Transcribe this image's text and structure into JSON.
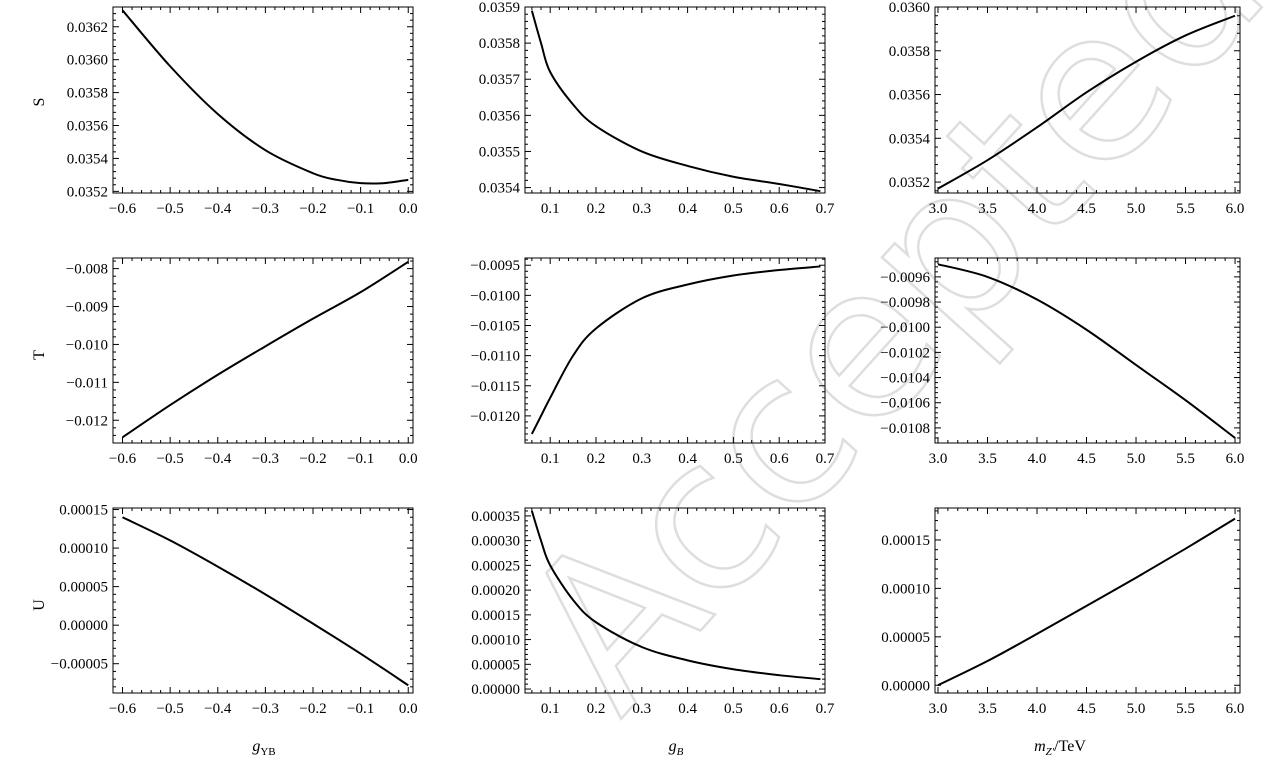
{
  "watermark": "Accepted",
  "row_labels": [
    "S",
    "T",
    "U"
  ],
  "column_labels": [
    {
      "main": "g",
      "sub": "YB"
    },
    {
      "main": "g",
      "sub": "B"
    },
    {
      "main": "m",
      "sub": "Z′",
      "suffix": "/TeV"
    }
  ],
  "chart_data": [
    {
      "type": "line",
      "panel": "S vs gYB",
      "ylabel": "S",
      "xlabel": "gYB",
      "xlim": [
        -0.62,
        0.01
      ],
      "ylim": [
        0.03519,
        0.03632
      ],
      "xticks": [
        -0.6,
        -0.5,
        -0.4,
        -0.3,
        -0.2,
        -0.1,
        0.0
      ],
      "xtick_labels": [
        "−0.6",
        "−0.5",
        "−0.4",
        "−0.3",
        "−0.2",
        "−0.1",
        "0.0"
      ],
      "yticks": [
        0.0352,
        0.0354,
        0.0356,
        0.0358,
        0.036,
        0.0362
      ],
      "ytick_labels": [
        "0.0352",
        "0.0354",
        "0.0356",
        "0.0358",
        "0.0360",
        "0.0362"
      ],
      "x": [
        -0.6,
        -0.5,
        -0.4,
        -0.3,
        -0.2,
        -0.15,
        -0.1,
        -0.05,
        0.0
      ],
      "y": [
        0.0363,
        0.03596,
        0.03567,
        0.03545,
        0.03531,
        0.03527,
        0.03525,
        0.03525,
        0.03527
      ]
    },
    {
      "type": "line",
      "panel": "S vs gB",
      "ylabel": "",
      "xlabel": "gB",
      "xlim": [
        0.045,
        0.7
      ],
      "ylim": [
        0.035385,
        0.0359
      ],
      "xticks": [
        0.1,
        0.2,
        0.3,
        0.4,
        0.5,
        0.6,
        0.7
      ],
      "xtick_labels": [
        "0.1",
        "0.2",
        "0.3",
        "0.4",
        "0.5",
        "0.6",
        "0.7"
      ],
      "yticks": [
        0.0354,
        0.0355,
        0.0356,
        0.0357,
        0.0358,
        0.0359
      ],
      "ytick_labels": [
        "0.0354",
        "0.0355",
        "0.0356",
        "0.0357",
        "0.0358",
        "0.0359"
      ],
      "x": [
        0.06,
        0.08,
        0.1,
        0.15,
        0.2,
        0.3,
        0.4,
        0.5,
        0.6,
        0.69
      ],
      "y": [
        0.03589,
        0.0358,
        0.03572,
        0.03563,
        0.03557,
        0.0355,
        0.03546,
        0.03543,
        0.03541,
        0.03539
      ]
    },
    {
      "type": "line",
      "panel": "S vs mZ'",
      "ylabel": "",
      "xlabel": "mZ'/TeV",
      "xlim": [
        2.97,
        6.05
      ],
      "ylim": [
        0.03515,
        0.036
      ],
      "xticks": [
        3.0,
        3.5,
        4.0,
        4.5,
        5.0,
        5.5,
        6.0
      ],
      "xtick_labels": [
        "3.0",
        "3.5",
        "4.0",
        "4.5",
        "5.0",
        "5.5",
        "6.0"
      ],
      "yticks": [
        0.0352,
        0.0354,
        0.0356,
        0.0358,
        0.036
      ],
      "ytick_labels": [
        "0.0352",
        "0.0354",
        "0.0356",
        "0.0358",
        "0.0360"
      ],
      "x": [
        3.0,
        3.5,
        4.0,
        4.5,
        5.0,
        5.5,
        6.0
      ],
      "y": [
        0.03517,
        0.0353,
        0.03545,
        0.03561,
        0.03575,
        0.03587,
        0.03596
      ]
    },
    {
      "type": "line",
      "panel": "T vs gYB",
      "ylabel": "T",
      "xlabel": "gYB",
      "xlim": [
        -0.62,
        0.01
      ],
      "ylim": [
        -0.0126,
        -0.00772
      ],
      "xticks": [
        -0.6,
        -0.5,
        -0.4,
        -0.3,
        -0.2,
        -0.1,
        0.0
      ],
      "xtick_labels": [
        "−0.6",
        "−0.5",
        "−0.4",
        "−0.3",
        "−0.2",
        "−0.1",
        "0.0"
      ],
      "yticks": [
        -0.012,
        -0.011,
        -0.01,
        -0.009,
        -0.008
      ],
      "ytick_labels": [
        "−0.012",
        "−0.011",
        "−0.010",
        "−0.009",
        "−0.008"
      ],
      "x": [
        -0.6,
        -0.5,
        -0.4,
        -0.3,
        -0.2,
        -0.1,
        0.0
      ],
      "y": [
        -0.01245,
        -0.0116,
        -0.0108,
        -0.01005,
        -0.00932,
        -0.00862,
        -0.00782
      ]
    },
    {
      "type": "line",
      "panel": "T vs gB",
      "ylabel": "",
      "xlabel": "gB",
      "xlim": [
        0.045,
        0.7
      ],
      "ylim": [
        -0.01245,
        -0.00938
      ],
      "xticks": [
        0.1,
        0.2,
        0.3,
        0.4,
        0.5,
        0.6,
        0.7
      ],
      "xtick_labels": [
        "0.1",
        "0.2",
        "0.3",
        "0.4",
        "0.5",
        "0.6",
        "0.7"
      ],
      "yticks": [
        -0.012,
        -0.0115,
        -0.011,
        -0.0105,
        -0.01,
        -0.0095
      ],
      "ytick_labels": [
        "−0.0120",
        "−0.0115",
        "−0.0110",
        "−0.0105",
        "−0.0100",
        "−0.0095"
      ],
      "x": [
        0.06,
        0.08,
        0.1,
        0.15,
        0.2,
        0.3,
        0.4,
        0.5,
        0.6,
        0.69
      ],
      "y": [
        -0.0123,
        -0.012,
        -0.0117,
        -0.011,
        -0.01055,
        -0.01005,
        -0.00982,
        -0.00967,
        -0.00958,
        -0.00952
      ]
    },
    {
      "type": "line",
      "panel": "T vs mZ'",
      "ylabel": "",
      "xlabel": "mZ'/TeV",
      "xlim": [
        2.97,
        6.05
      ],
      "ylim": [
        -0.01092,
        -0.00945
      ],
      "xticks": [
        3.0,
        3.5,
        4.0,
        4.5,
        5.0,
        5.5,
        6.0
      ],
      "xtick_labels": [
        "3.0",
        "3.5",
        "4.0",
        "4.5",
        "5.0",
        "5.5",
        "6.0"
      ],
      "yticks": [
        -0.0108,
        -0.0106,
        -0.0104,
        -0.0102,
        -0.01,
        -0.0098,
        -0.0096
      ],
      "ytick_labels": [
        "−0.0108",
        "−0.0106",
        "−0.0104",
        "−0.0102",
        "−0.0100",
        "−0.0098",
        "−0.0096"
      ],
      "x": [
        3.0,
        3.5,
        4.0,
        4.5,
        5.0,
        5.5,
        6.0
      ],
      "y": [
        -0.0095,
        -0.0096,
        -0.00978,
        -0.01002,
        -0.0103,
        -0.01058,
        -0.01088
      ]
    },
    {
      "type": "line",
      "panel": "U vs gYB",
      "ylabel": "U",
      "xlabel": "gYB",
      "xlim": [
        -0.62,
        0.01
      ],
      "ylim": [
        -8.8e-05,
        0.000152
      ],
      "xticks": [
        -0.6,
        -0.5,
        -0.4,
        -0.3,
        -0.2,
        -0.1,
        0.0
      ],
      "xtick_labels": [
        "−0.6",
        "−0.5",
        "−0.4",
        "−0.3",
        "−0.2",
        "−0.1",
        "0.0"
      ],
      "yticks": [
        -5e-05,
        0.0,
        5e-05,
        0.0001,
        0.00015
      ],
      "ytick_labels": [
        "−0.00005",
        "0.00000",
        "0.00005",
        "0.00010",
        "0.00015"
      ],
      "x": [
        -0.6,
        -0.5,
        -0.4,
        -0.3,
        -0.2,
        -0.1,
        0.0
      ],
      "y": [
        0.00014,
        0.00011,
        7.6e-05,
        4e-05,
        2e-06,
        -3.7e-05,
        -7.8e-05
      ]
    },
    {
      "type": "line",
      "panel": "U vs gB",
      "ylabel": "",
      "xlabel": "gB",
      "xlim": [
        0.045,
        0.7
      ],
      "ylim": [
        -8e-06,
        0.000366
      ],
      "xticks": [
        0.1,
        0.2,
        0.3,
        0.4,
        0.5,
        0.6,
        0.7
      ],
      "xtick_labels": [
        "0.1",
        "0.2",
        "0.3",
        "0.4",
        "0.5",
        "0.6",
        "0.7"
      ],
      "yticks": [
        0.0,
        5e-05,
        0.0001,
        0.00015,
        0.0002,
        0.00025,
        0.0003,
        0.00035
      ],
      "ytick_labels": [
        "0.00000",
        "0.00005",
        "0.00010",
        "0.00015",
        "0.00020",
        "0.00025",
        "0.00030",
        "0.00035"
      ],
      "x": [
        0.06,
        0.08,
        0.1,
        0.15,
        0.2,
        0.3,
        0.4,
        0.5,
        0.6,
        0.69
      ],
      "y": [
        0.00036,
        0.0003,
        0.00025,
        0.00018,
        0.000135,
        8.5e-05,
        5.8e-05,
        4e-05,
        2.8e-05,
        2e-05
      ]
    },
    {
      "type": "line",
      "panel": "U vs mZ'",
      "ylabel": "",
      "xlabel": "mZ'/TeV",
      "xlim": [
        2.97,
        6.05
      ],
      "ylim": [
        -8e-06,
        0.000183
      ],
      "xticks": [
        3.0,
        3.5,
        4.0,
        4.5,
        5.0,
        5.5,
        6.0
      ],
      "xtick_labels": [
        "3.0",
        "3.5",
        "4.0",
        "4.5",
        "5.0",
        "5.5",
        "6.0"
      ],
      "yticks": [
        0.0,
        5e-05,
        0.0001,
        0.00015
      ],
      "ytick_labels": [
        "0.00000",
        "0.00005",
        "0.00010",
        "0.00015"
      ],
      "x": [
        3.0,
        3.5,
        4.0,
        4.5,
        5.0,
        5.5,
        6.0
      ],
      "y": [
        0.0,
        2.5e-05,
        5.3e-05,
        8.2e-05,
        0.000111,
        0.000141,
        0.000172
      ]
    }
  ]
}
